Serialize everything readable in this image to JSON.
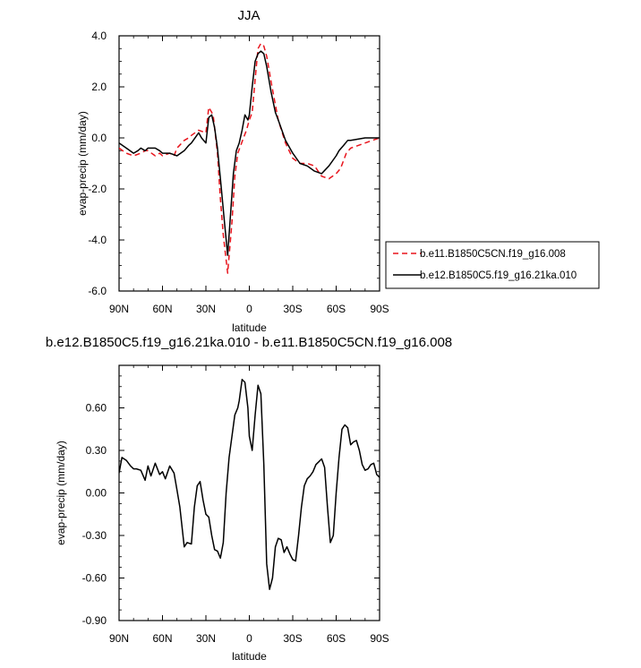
{
  "chart_data": [
    {
      "type": "line",
      "title": "JJA",
      "xlabel": "latitude",
      "ylabel": "evap-precip (mm/day)",
      "xlim": [
        90,
        -90
      ],
      "ylim": [
        -6.0,
        4.0
      ],
      "xticks": [
        90,
        60,
        30,
        0,
        -30,
        -60,
        -90
      ],
      "xtick_labels": [
        "90N",
        "60N",
        "30N",
        "0",
        "30S",
        "60S",
        "90S"
      ],
      "yticks": [
        4.0,
        2.0,
        0.0,
        -2.0,
        -4.0,
        -6.0
      ],
      "ytick_labels": [
        "4.0",
        "2.0",
        "0.0",
        "-2.0",
        "-4.0",
        "-6.0"
      ],
      "legend_position": "right",
      "series": [
        {
          "name": "b.e11.B1850C5CN.f19_g16.008",
          "color": "#e8141c",
          "dash": "dashed",
          "x": [
            90,
            85,
            80,
            75,
            72,
            70,
            65,
            62,
            60,
            55,
            52,
            50,
            45,
            42,
            40,
            35,
            30,
            28,
            25,
            22,
            20,
            18,
            15,
            12,
            10,
            8,
            6,
            4,
            2,
            0,
            -2,
            -4,
            -6,
            -8,
            -10,
            -12,
            -15,
            -18,
            -20,
            -25,
            -30,
            -35,
            -40,
            -45,
            -50,
            -55,
            -60,
            -63,
            -65,
            -67,
            -70,
            -75,
            -80,
            -85,
            -90
          ],
          "y": [
            -0.4,
            -0.6,
            -0.7,
            -0.6,
            -0.5,
            -0.5,
            -0.7,
            -0.6,
            -0.7,
            -0.6,
            -0.7,
            -0.4,
            -0.1,
            0.0,
            0.1,
            0.3,
            0.2,
            1.2,
            0.9,
            -0.6,
            -2.4,
            -3.8,
            -5.3,
            -3.3,
            -1.5,
            -0.6,
            -0.3,
            0.0,
            0.3,
            0.7,
            1.0,
            2.3,
            3.5,
            3.7,
            3.6,
            3.2,
            2.2,
            1.3,
            0.7,
            -0.2,
            -0.8,
            -1.0,
            -1.0,
            -1.1,
            -1.5,
            -1.6,
            -1.4,
            -1.2,
            -0.9,
            -0.6,
            -0.4,
            -0.3,
            -0.2,
            -0.1,
            0.0
          ]
        },
        {
          "name": "b.e12.B1850C5.f19_g16.21ka.010",
          "color": "#000000",
          "dash": "solid",
          "x": [
            90,
            85,
            80,
            77,
            75,
            72,
            70,
            65,
            62,
            60,
            55,
            50,
            45,
            42,
            40,
            35,
            33,
            30,
            28,
            26,
            24,
            22,
            20,
            17,
            15,
            13,
            11,
            9,
            7,
            5,
            3,
            1,
            0,
            -2,
            -4,
            -6,
            -8,
            -10,
            -12,
            -15,
            -18,
            -20,
            -25,
            -30,
            -35,
            -40,
            -45,
            -50,
            -55,
            -60,
            -62,
            -65,
            -68,
            -70,
            -75,
            -80,
            -85,
            -90
          ],
          "y": [
            -0.2,
            -0.4,
            -0.6,
            -0.5,
            -0.4,
            -0.5,
            -0.4,
            -0.4,
            -0.5,
            -0.6,
            -0.6,
            -0.7,
            -0.5,
            -0.3,
            -0.2,
            0.2,
            0.0,
            -0.2,
            0.8,
            0.9,
            0.4,
            -0.4,
            -1.6,
            -3.4,
            -4.6,
            -3.0,
            -1.4,
            -0.5,
            -0.2,
            0.3,
            0.9,
            0.7,
            0.9,
            2.0,
            3.0,
            3.3,
            3.4,
            3.3,
            2.8,
            1.8,
            1.0,
            0.7,
            -0.1,
            -0.6,
            -1.0,
            -1.1,
            -1.3,
            -1.4,
            -1.1,
            -0.7,
            -0.5,
            -0.3,
            -0.1,
            -0.1,
            -0.05,
            0.0,
            0.0,
            0.0
          ]
        }
      ]
    },
    {
      "type": "line",
      "title": "b.e12.B1850C5.f19_g16.21ka.010 - b.e11.B1850C5CN.f19_g16.008",
      "xlabel": "latitude",
      "ylabel": "evap-precip (mm/day)",
      "xlim": [
        90,
        -90
      ],
      "ylim": [
        -0.9,
        0.9
      ],
      "xticks": [
        90,
        60,
        30,
        0,
        -30,
        -60,
        -90
      ],
      "xtick_labels": [
        "90N",
        "60N",
        "30N",
        "0",
        "30S",
        "60S",
        "90S"
      ],
      "yticks": [
        0.6,
        0.3,
        0.0,
        -0.3,
        -0.6,
        -0.9
      ],
      "ytick_labels": [
        "0.60",
        "0.30",
        "0.00",
        "-0.30",
        "-0.60",
        "-0.90"
      ],
      "series": [
        {
          "color": "#000000",
          "dash": "solid",
          "x": [
            90,
            88,
            85,
            82,
            80,
            78,
            75,
            72,
            70,
            68,
            65,
            62,
            60,
            58,
            55,
            52,
            50,
            48,
            45,
            43,
            40,
            38,
            36,
            34,
            32,
            30,
            28,
            26,
            24,
            22,
            20,
            18,
            16,
            14,
            12,
            10,
            8,
            7,
            5,
            3,
            1,
            0,
            -2,
            -4,
            -6,
            -8,
            -10,
            -12,
            -14,
            -16,
            -18,
            -20,
            -22,
            -24,
            -26,
            -28,
            -30,
            -32,
            -34,
            -36,
            -38,
            -40,
            -42,
            -44,
            -46,
            -48,
            -50,
            -52,
            -54,
            -56,
            -58,
            -60,
            -62,
            -64,
            -66,
            -68,
            -70,
            -72,
            -74,
            -76,
            -78,
            -80,
            -82,
            -84,
            -86,
            -88,
            -90
          ],
          "y": [
            0.14,
            0.25,
            0.23,
            0.19,
            0.17,
            0.17,
            0.16,
            0.09,
            0.19,
            0.12,
            0.21,
            0.13,
            0.15,
            0.1,
            0.19,
            0.14,
            0.02,
            -0.1,
            -0.38,
            -0.35,
            -0.36,
            -0.1,
            0.05,
            0.08,
            -0.05,
            -0.15,
            -0.17,
            -0.3,
            -0.4,
            -0.41,
            -0.46,
            -0.35,
            0.0,
            0.25,
            0.4,
            0.55,
            0.6,
            0.65,
            0.8,
            0.78,
            0.6,
            0.4,
            0.3,
            0.55,
            0.76,
            0.7,
            0.2,
            -0.5,
            -0.68,
            -0.6,
            -0.38,
            -0.32,
            -0.33,
            -0.42,
            -0.38,
            -0.43,
            -0.47,
            -0.48,
            -0.3,
            -0.1,
            0.05,
            0.1,
            0.12,
            0.15,
            0.2,
            0.22,
            0.24,
            0.18,
            -0.1,
            -0.35,
            -0.3,
            0.0,
            0.25,
            0.45,
            0.48,
            0.46,
            0.34,
            0.36,
            0.37,
            0.3,
            0.2,
            0.16,
            0.17,
            0.2,
            0.21,
            0.13,
            0.11
          ]
        }
      ]
    }
  ]
}
